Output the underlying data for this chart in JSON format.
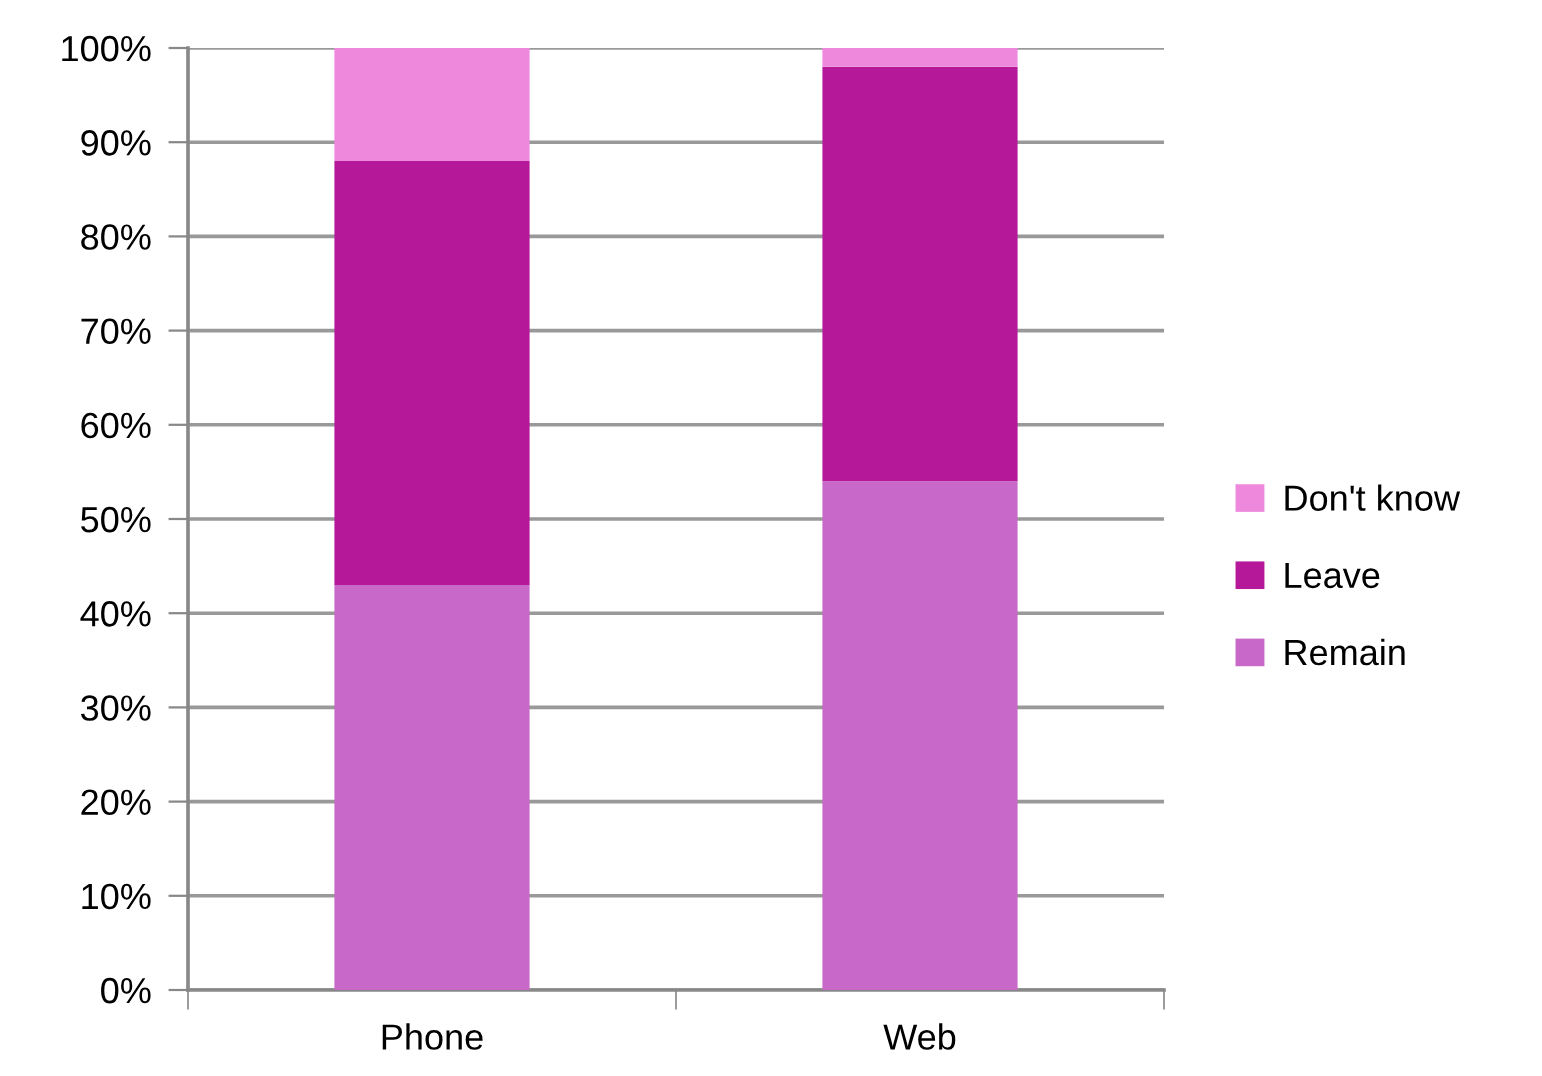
{
  "chart_data": {
    "type": "bar",
    "stacked": true,
    "categories": [
      "Phone",
      "Web"
    ],
    "series": [
      {
        "name": "Remain",
        "color": "#c868c8",
        "values": [
          43,
          54
        ]
      },
      {
        "name": "Leave",
        "color": "#b5199a",
        "values": [
          45,
          44
        ]
      },
      {
        "name": "Don't know",
        "color": "#ee88dd",
        "values": [
          12,
          2
        ]
      }
    ],
    "ylim": [
      0,
      100
    ],
    "yticks": [
      {
        "value": 0,
        "label": "0%"
      },
      {
        "value": 10,
        "label": "10%"
      },
      {
        "value": 20,
        "label": "20%"
      },
      {
        "value": 30,
        "label": "30%"
      },
      {
        "value": 40,
        "label": "40%"
      },
      {
        "value": 50,
        "label": "50%"
      },
      {
        "value": 60,
        "label": "60%"
      },
      {
        "value": 70,
        "label": "70%"
      },
      {
        "value": 80,
        "label": "80%"
      },
      {
        "value": 90,
        "label": "90%"
      },
      {
        "value": 100,
        "label": "100%"
      }
    ],
    "grid": "y",
    "legend": "right"
  }
}
